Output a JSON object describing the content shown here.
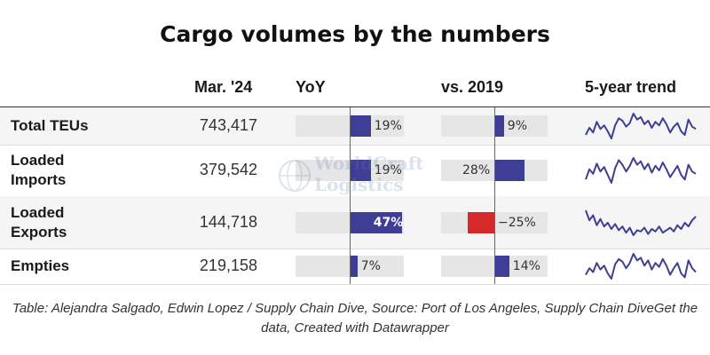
{
  "title": "Cargo volumes by the numbers",
  "headers": {
    "value": "Mar. '24",
    "yoy": "YoY",
    "vs2019": "vs. 2019",
    "trend": "5-year trend"
  },
  "watermark": {
    "line1": "WorldCraft",
    "line2": "Logistics"
  },
  "footer": "Table: Alejandra Salgado, Edwin Lopez / Supply Chain Dive, Source: Port of Los Angeles, Supply Chain DiveGet the data, Created with Datawrapper",
  "colors": {
    "bar": "#3f3e97",
    "negative": "#d52a2a",
    "track": "#e6e6e6",
    "sparkline": "#3f3e97"
  },
  "chart_data": {
    "type": "table",
    "columns": [
      "",
      "Mar. '24",
      "YoY",
      "vs. 2019",
      "5-year trend"
    ],
    "rows": [
      {
        "label": "Total TEUs",
        "value": "743,417",
        "yoy": 19,
        "yoy_label": "19%",
        "vs2019": 9,
        "vs2019_label": "9%",
        "trend": [
          44,
          50,
          46,
          55,
          49,
          52,
          47,
          41,
          52,
          58,
          56,
          51,
          54,
          62,
          57,
          59,
          53,
          56,
          50,
          55,
          52,
          58,
          53,
          46,
          51,
          54,
          47,
          44,
          57,
          51,
          49
        ]
      },
      {
        "label": "Loaded Imports",
        "value": "379,542",
        "yoy": 19,
        "yoy_label": "19%",
        "vs2019": 28,
        "vs2019_label": "28%",
        "trend": [
          43,
          52,
          48,
          57,
          50,
          54,
          47,
          40,
          53,
          60,
          56,
          50,
          55,
          62,
          56,
          59,
          52,
          57,
          49,
          55,
          51,
          58,
          52,
          45,
          50,
          55,
          47,
          43,
          56,
          50,
          48
        ]
      },
      {
        "label": "Loaded Exports",
        "value": "144,718",
        "yoy": 47,
        "yoy_label": "47%",
        "vs2019": -25,
        "vs2019_label": "−25%",
        "trend": [
          60,
          52,
          56,
          48,
          53,
          47,
          50,
          45,
          49,
          44,
          47,
          42,
          46,
          40,
          44,
          43,
          46,
          41,
          45,
          43,
          47,
          42,
          44,
          46,
          43,
          48,
          45,
          50,
          47,
          52,
          55
        ]
      },
      {
        "label": "Empties",
        "value": "219,158",
        "yoy": 7,
        "yoy_label": "7%",
        "vs2019": 14,
        "vs2019_label": "14%",
        "trend": [
          45,
          50,
          47,
          54,
          49,
          52,
          46,
          42,
          53,
          57,
          55,
          50,
          54,
          61,
          56,
          58,
          52,
          56,
          49,
          54,
          51,
          57,
          52,
          45,
          50,
          54,
          46,
          43,
          56,
          50,
          47
        ]
      }
    ]
  }
}
